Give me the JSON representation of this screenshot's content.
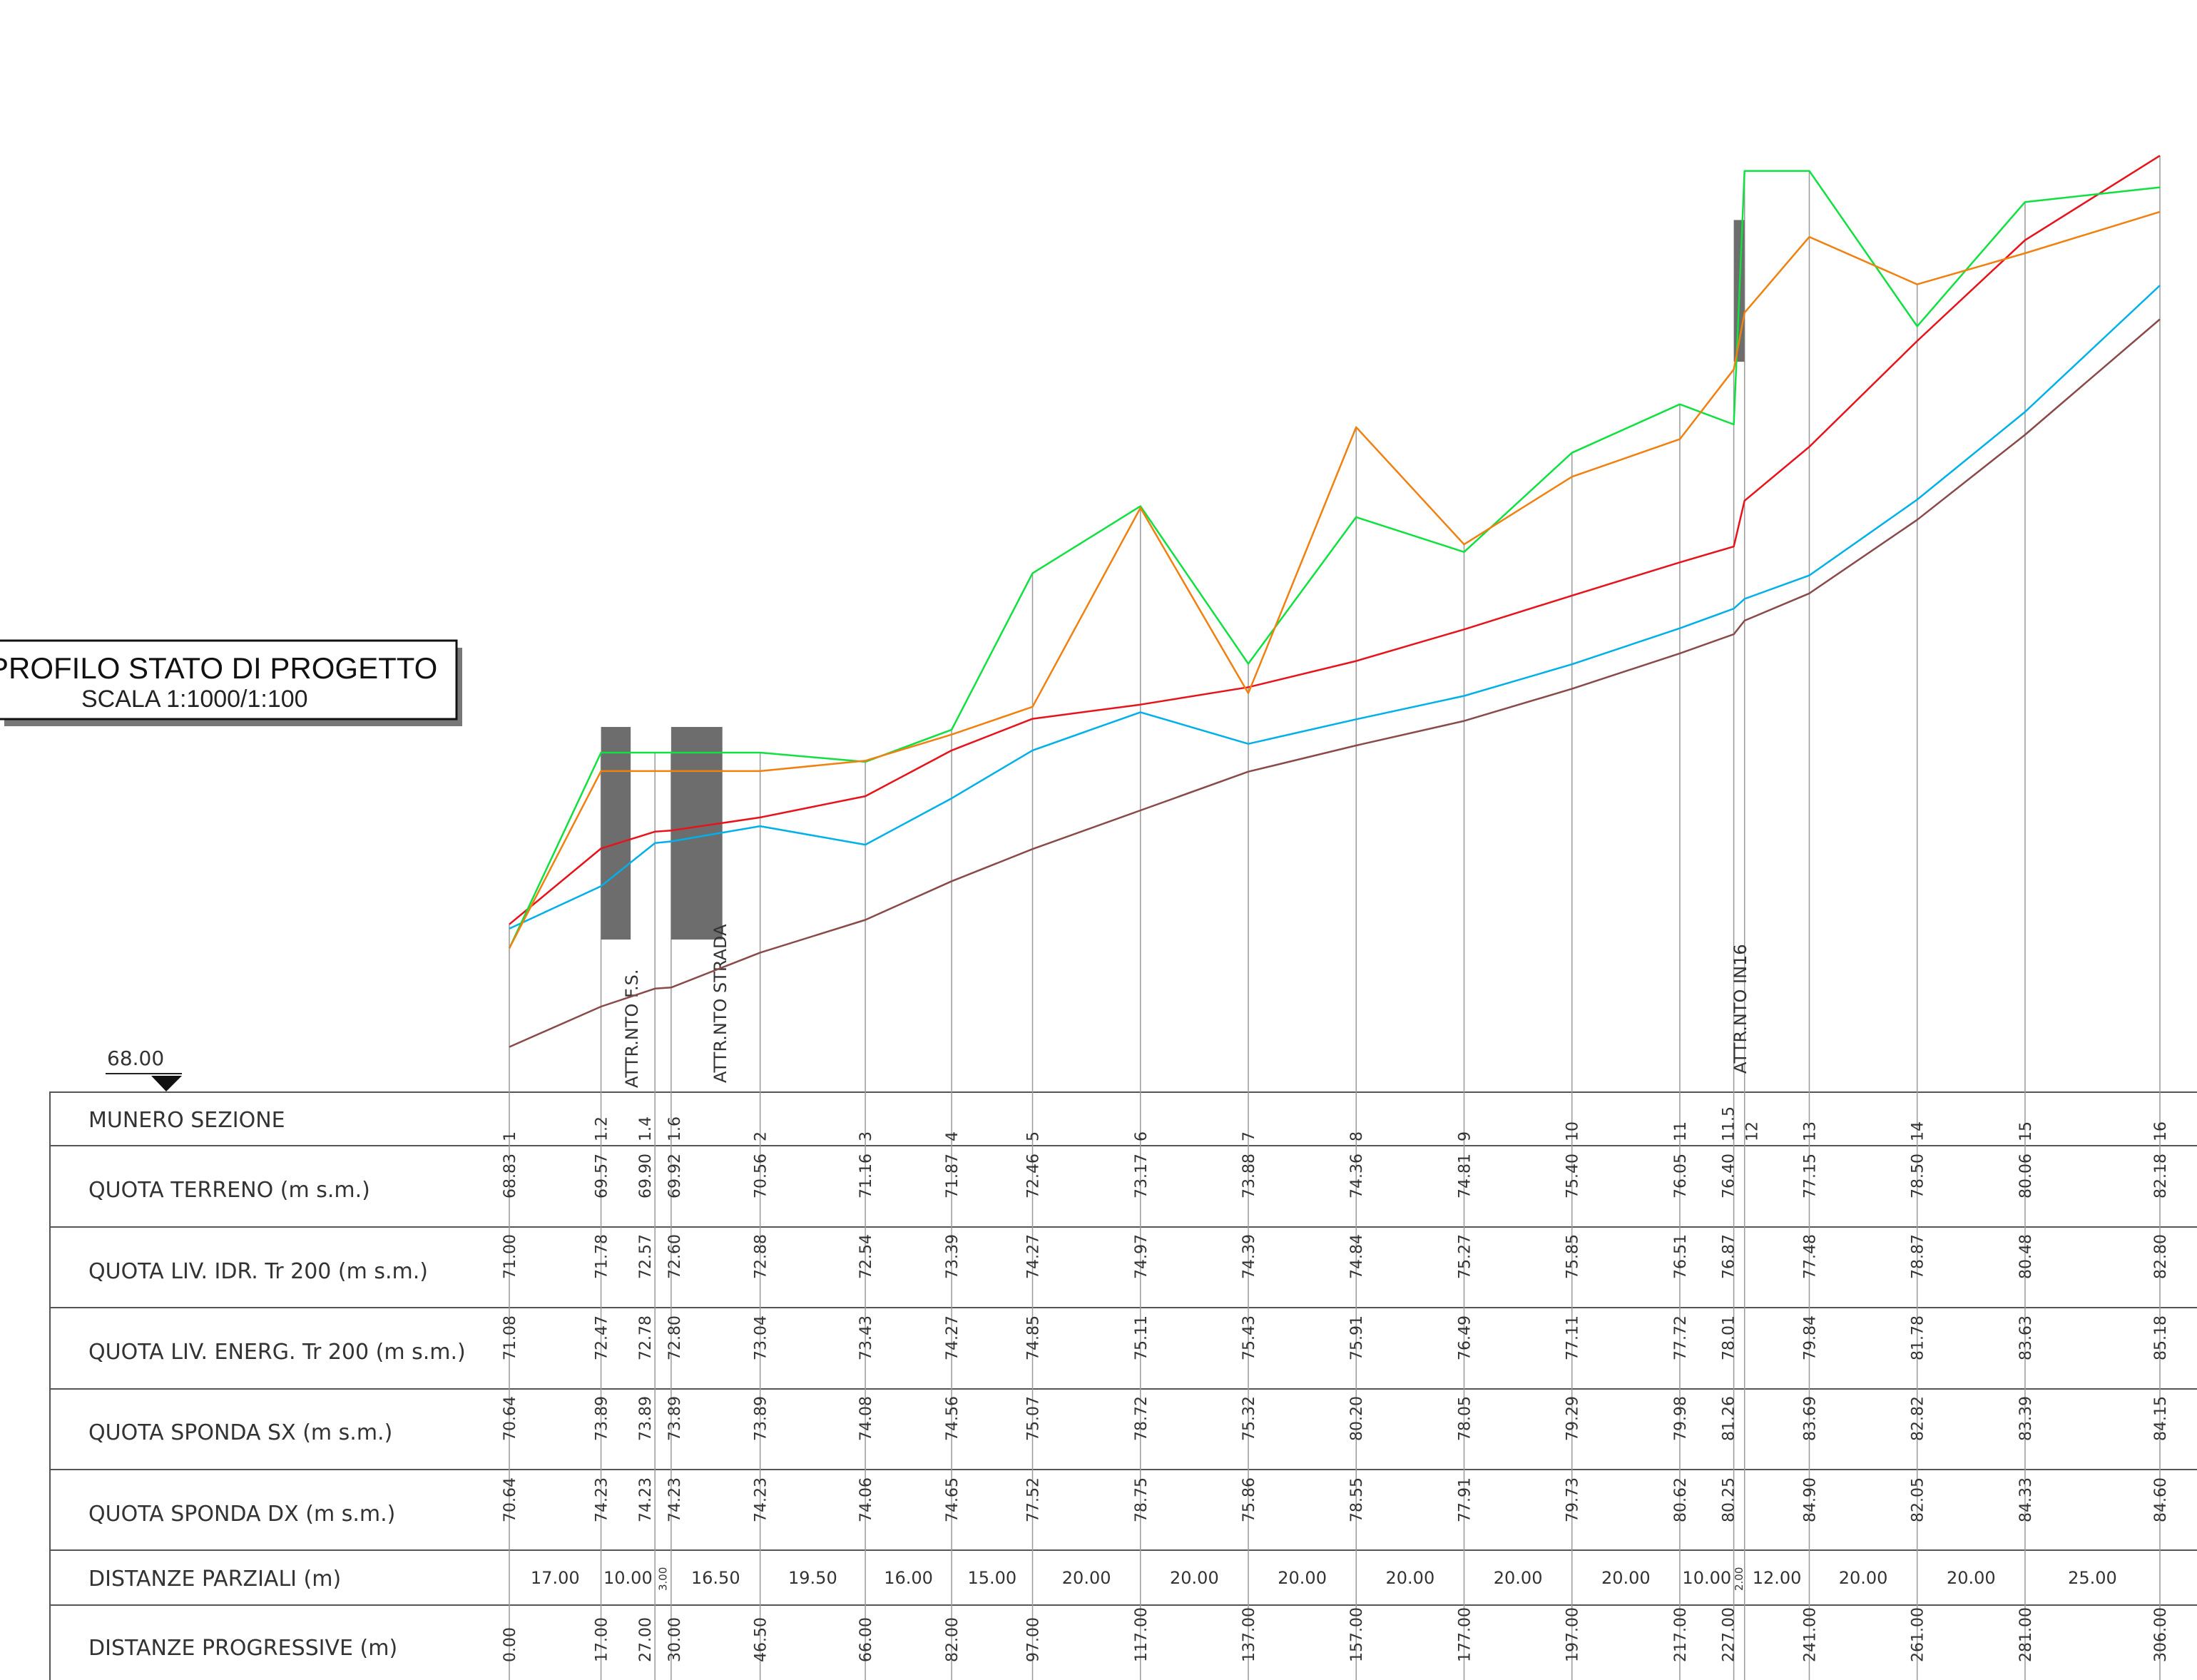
{
  "title": {
    "main": "PROFILO STATO DI PROGETTO",
    "scale": "SCALA 1:1000/1:100"
  },
  "datum": "68.00",
  "structures": [
    {
      "label": "ATTR.NTO F.S."
    },
    {
      "label": "ATTR.NTO STRADA"
    },
    {
      "label": "ATTR.NTO IN16"
    }
  ],
  "row_labels": {
    "sezione": "MUNERO SEZIONE",
    "terreno": "QUOTA TERRENO (m s.m.)",
    "idr": "QUOTA LIV. IDR. Tr 200 (m s.m.)",
    "energ": "QUOTA LIV. ENERG. Tr 200 (m s.m.)",
    "sx": "QUOTA SPONDA SX (m s.m.)",
    "dx": "QUOTA SPONDA DX (m s.m.)",
    "parziali": "DISTANZE PARZIALI (m)",
    "progressive": "DISTANZE PROGRESSIVE (m)"
  },
  "colors": {
    "terreno": "#8b4a4a",
    "idr": "#00b0e8",
    "energ": "#e8121a",
    "sx": "#f08010",
    "dx": "#10e040",
    "grid": "#9a9a9a",
    "structure": "#6d6d6d"
  },
  "chart_data": {
    "type": "line",
    "x": [
      0,
      17,
      27,
      30,
      46.5,
      66,
      82,
      97,
      117,
      137,
      157,
      177,
      197,
      217,
      227,
      229,
      241,
      261,
      281,
      306
    ],
    "sections": [
      "1",
      "1.2",
      "1.4",
      "1.6",
      "2",
      "3",
      "4",
      "5",
      "6",
      "7",
      "8",
      "9",
      "10",
      "11",
      "11.5",
      "12",
      "13",
      "14",
      "15",
      "16"
    ],
    "progressive_labels": [
      "0.00",
      "17.00",
      "27.00",
      "30.00",
      "46.50",
      "66.00",
      "82.00",
      "97.00",
      "117.00",
      "137.00",
      "157.00",
      "177.00",
      "197.00",
      "217.00",
      "227.00",
      "",
      "241.00",
      "261.00",
      "281.00",
      "306.00"
    ],
    "partial_labels": [
      "17.00",
      "10.00",
      "3.00",
      "16.50",
      "19.50",
      "16.00",
      "15.00",
      "20.00",
      "20.00",
      "20.00",
      "20.00",
      "20.00",
      "20.00",
      "10.00",
      "2.00",
      "12.00",
      "20.00",
      "20.00",
      "25.00"
    ],
    "series": [
      {
        "key": "terreno",
        "labels": [
          "68.83",
          "69.57",
          "69.90",
          "69.92",
          "70.56",
          "71.16",
          "71.87",
          "72.46",
          "73.17",
          "73.88",
          "74.36",
          "74.81",
          "75.40",
          "76.05",
          "76.40",
          "",
          "77.15",
          "78.50",
          "80.06",
          "82.18"
        ],
        "values": [
          68.83,
          69.57,
          69.9,
          69.92,
          70.56,
          71.16,
          71.87,
          72.46,
          73.17,
          73.88,
          74.36,
          74.81,
          75.4,
          76.05,
          76.4,
          76.65,
          77.15,
          78.5,
          80.06,
          82.18
        ]
      },
      {
        "key": "idr",
        "labels": [
          "71.00",
          "71.78",
          "72.57",
          "72.60",
          "72.88",
          "72.54",
          "73.39",
          "74.27",
          "74.97",
          "74.39",
          "74.84",
          "75.27",
          "75.85",
          "76.51",
          "76.87",
          "",
          "77.48",
          "78.87",
          "80.48",
          "82.80"
        ],
        "values": [
          71.0,
          71.78,
          72.57,
          72.6,
          72.88,
          72.54,
          73.39,
          74.27,
          74.97,
          74.39,
          74.84,
          75.27,
          75.85,
          76.51,
          76.87,
          77.05,
          77.48,
          78.87,
          80.48,
          82.8
        ]
      },
      {
        "key": "energ",
        "labels": [
          "71.08",
          "72.47",
          "72.78",
          "72.80",
          "73.04",
          "73.43",
          "74.27",
          "74.85",
          "75.11",
          "75.43",
          "75.91",
          "76.49",
          "77.11",
          "77.72",
          "78.01",
          "",
          "79.84",
          "81.78",
          "83.63",
          "85.18"
        ],
        "values": [
          71.08,
          72.47,
          72.78,
          72.8,
          73.04,
          73.43,
          74.27,
          74.85,
          75.11,
          75.43,
          75.91,
          76.49,
          77.11,
          77.72,
          78.01,
          78.85,
          79.84,
          81.78,
          83.63,
          85.18
        ]
      },
      {
        "key": "sx",
        "labels": [
          "70.64",
          "73.89",
          "73.89",
          "73.89",
          "73.89",
          "74.08",
          "74.56",
          "75.07",
          "78.72",
          "75.32",
          "80.20",
          "78.05",
          "79.29",
          "79.98",
          "81.26",
          "",
          "83.69",
          "82.82",
          "83.39",
          "84.15"
        ],
        "values": [
          70.64,
          73.89,
          73.89,
          73.89,
          73.89,
          74.08,
          74.56,
          75.07,
          78.72,
          75.32,
          80.2,
          78.05,
          79.29,
          79.98,
          81.26,
          82.3,
          83.69,
          82.82,
          83.39,
          84.15
        ]
      },
      {
        "key": "dx",
        "labels": [
          "70.64",
          "74.23",
          "74.23",
          "74.23",
          "74.23",
          "74.06",
          "74.65",
          "77.52",
          "78.75",
          "75.86",
          "78.55",
          "77.91",
          "79.73",
          "80.62",
          "80.25",
          "",
          "84.90",
          "82.05",
          "84.33",
          "84.60"
        ],
        "values": [
          70.64,
          74.23,
          74.23,
          74.23,
          74.23,
          74.06,
          74.65,
          77.52,
          78.75,
          75.86,
          78.55,
          77.91,
          79.73,
          80.62,
          80.25,
          84.9,
          84.9,
          82.05,
          84.33,
          84.6
        ]
      }
    ],
    "structure_spans": [
      [
        17,
        22.5
      ],
      [
        30,
        39.5
      ],
      [
        227,
        229
      ]
    ],
    "structure_heights": [
      [
        70.8,
        74.7
      ],
      [
        70.8,
        74.7
      ],
      [
        81.4,
        84.0
      ]
    ]
  }
}
